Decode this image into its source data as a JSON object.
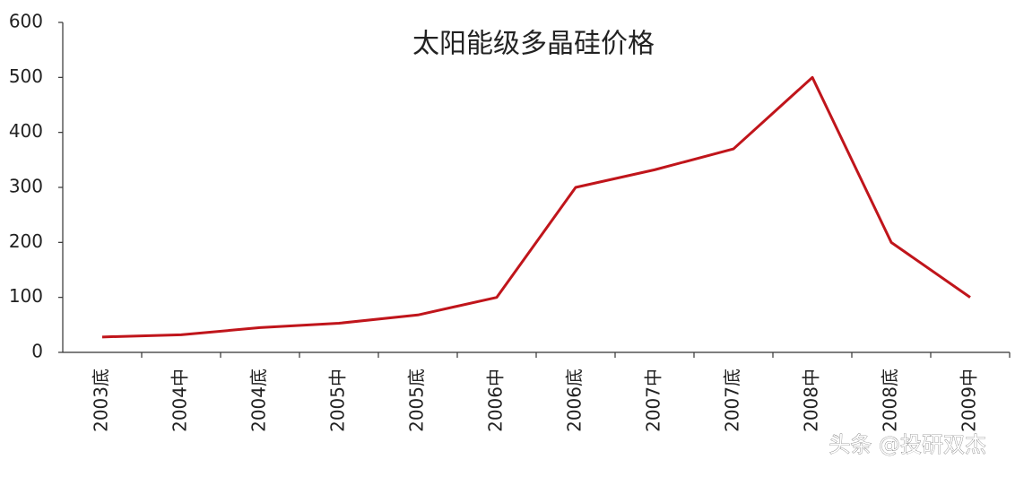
{
  "chart_data": {
    "type": "line",
    "title": "太阳能级多晶硅价格",
    "categories": [
      "2003底",
      "2004中",
      "2004底",
      "2005中",
      "2005底",
      "2006中",
      "2006底",
      "2007中",
      "2007底",
      "2008中",
      "2008底",
      "2009中"
    ],
    "values": [
      28,
      32,
      45,
      53,
      68,
      100,
      300,
      332,
      370,
      500,
      200,
      100
    ],
    "color": "#c0151b",
    "ylim": [
      0,
      600
    ],
    "yticks": [
      0,
      100,
      200,
      300,
      400,
      500,
      600
    ]
  },
  "watermark": "头条 @投研双杰"
}
